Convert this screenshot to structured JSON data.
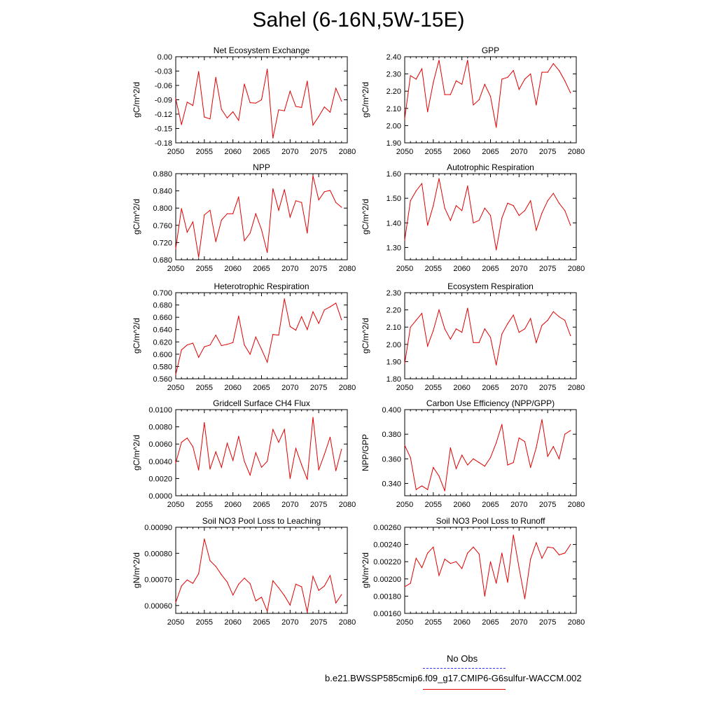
{
  "title": "Sahel (6-16N,5W-15E)",
  "legend": {
    "obs_label": "No Obs",
    "obs_color": "#3333ff",
    "model_label": "b.e21.BWSSP585cmip6.f09_g17.CMIP6-G6sulfur-WACCM.002",
    "model_color": "#e00000"
  },
  "chart_data": [
    {
      "type": "line",
      "title": "Net Ecosystem Exchange",
      "ylabel": "gC/m^2/d",
      "xlim": [
        2050,
        2080
      ],
      "ylim": [
        -0.18,
        0.0
      ],
      "xticks": [
        "2050",
        "2055",
        "2060",
        "2065",
        "2070",
        "2075",
        "2080"
      ],
      "yticks": [
        "-0.18",
        "-0.15",
        "-0.12",
        "-0.09",
        "-0.06",
        "-0.03",
        "0.00"
      ],
      "x": [
        2050,
        2051,
        2052,
        2053,
        2054,
        2055,
        2056,
        2057,
        2058,
        2059,
        2060,
        2061,
        2062,
        2063,
        2064,
        2065,
        2066,
        2067,
        2068,
        2069,
        2070,
        2071,
        2072,
        2073,
        2074,
        2075,
        2076,
        2077,
        2078,
        2079
      ],
      "values": [
        -0.088,
        -0.142,
        -0.095,
        -0.102,
        -0.031,
        -0.126,
        -0.13,
        -0.043,
        -0.11,
        -0.128,
        -0.115,
        -0.133,
        -0.057,
        -0.096,
        -0.097,
        -0.09,
        -0.026,
        -0.17,
        -0.111,
        -0.113,
        -0.072,
        -0.104,
        -0.106,
        -0.051,
        -0.143,
        -0.125,
        -0.105,
        -0.116,
        -0.066,
        -0.093
      ]
    },
    {
      "type": "line",
      "title": "GPP",
      "ylabel": "gC/m^2/d",
      "xlim": [
        2050,
        2080
      ],
      "ylim": [
        1.9,
        2.4
      ],
      "xticks": [
        "2050",
        "2055",
        "2060",
        "2065",
        "2070",
        "2075",
        "2080"
      ],
      "yticks": [
        "1.90",
        "2.00",
        "2.10",
        "2.20",
        "2.30",
        "2.40"
      ],
      "x": [
        2050,
        2051,
        2052,
        2053,
        2054,
        2055,
        2056,
        2057,
        2058,
        2059,
        2060,
        2061,
        2062,
        2063,
        2064,
        2065,
        2066,
        2067,
        2068,
        2069,
        2070,
        2071,
        2072,
        2073,
        2074,
        2075,
        2076,
        2077,
        2078,
        2079
      ],
      "values": [
        2.04,
        2.29,
        2.27,
        2.33,
        2.08,
        2.25,
        2.38,
        2.18,
        2.18,
        2.26,
        2.24,
        2.38,
        2.12,
        2.15,
        2.24,
        2.17,
        1.99,
        2.27,
        2.28,
        2.32,
        2.21,
        2.27,
        2.3,
        2.12,
        2.31,
        2.31,
        2.36,
        2.32,
        2.26,
        2.19
      ]
    },
    {
      "type": "line",
      "title": "NPP",
      "ylabel": "gC/m^2/d",
      "xlim": [
        2050,
        2080
      ],
      "ylim": [
        0.68,
        0.88
      ],
      "xticks": [
        "2050",
        "2055",
        "2060",
        "2065",
        "2070",
        "2075",
        "2080"
      ],
      "yticks": [
        "0.680",
        "0.720",
        "0.760",
        "0.800",
        "0.840",
        "0.880"
      ],
      "x": [
        2050,
        2051,
        2052,
        2053,
        2054,
        2055,
        2056,
        2057,
        2058,
        2059,
        2060,
        2061,
        2062,
        2063,
        2064,
        2065,
        2066,
        2067,
        2068,
        2069,
        2070,
        2071,
        2072,
        2073,
        2074,
        2075,
        2076,
        2077,
        2078,
        2079
      ],
      "values": [
        0.706,
        0.799,
        0.744,
        0.768,
        0.686,
        0.784,
        0.795,
        0.722,
        0.772,
        0.787,
        0.787,
        0.826,
        0.724,
        0.742,
        0.787,
        0.75,
        0.697,
        0.845,
        0.795,
        0.843,
        0.779,
        0.817,
        0.813,
        0.742,
        0.875,
        0.819,
        0.838,
        0.841,
        0.813,
        0.802
      ]
    },
    {
      "type": "line",
      "title": "Autotrophic Respiration",
      "ylabel": "gC/m^2/d",
      "xlim": [
        2050,
        2080
      ],
      "ylim": [
        1.25,
        1.6
      ],
      "xticks": [
        "2050",
        "2055",
        "2060",
        "2065",
        "2070",
        "2075",
        "2080"
      ],
      "yticks": [
        "1.30",
        "1.40",
        "1.50",
        "1.60"
      ],
      "x": [
        2050,
        2051,
        2052,
        2053,
        2054,
        2055,
        2056,
        2057,
        2058,
        2059,
        2060,
        2061,
        2062,
        2063,
        2064,
        2065,
        2066,
        2067,
        2068,
        2069,
        2070,
        2071,
        2072,
        2073,
        2074,
        2075,
        2076,
        2077,
        2078,
        2079
      ],
      "values": [
        1.33,
        1.49,
        1.53,
        1.56,
        1.39,
        1.47,
        1.58,
        1.46,
        1.41,
        1.47,
        1.45,
        1.55,
        1.4,
        1.41,
        1.46,
        1.43,
        1.29,
        1.42,
        1.48,
        1.47,
        1.43,
        1.45,
        1.49,
        1.37,
        1.44,
        1.49,
        1.52,
        1.48,
        1.45,
        1.39
      ]
    },
    {
      "type": "line",
      "title": "Heterotrophic Respiration",
      "ylabel": "gC/m^2/d",
      "xlim": [
        2050,
        2080
      ],
      "ylim": [
        0.56,
        0.7
      ],
      "xticks": [
        "2050",
        "2055",
        "2060",
        "2065",
        "2070",
        "2075",
        "2080"
      ],
      "yticks": [
        "0.560",
        "0.580",
        "0.600",
        "0.620",
        "0.640",
        "0.660",
        "0.680",
        "0.700"
      ],
      "x": [
        2050,
        2051,
        2052,
        2053,
        2054,
        2055,
        2056,
        2057,
        2058,
        2059,
        2060,
        2061,
        2062,
        2063,
        2064,
        2065,
        2066,
        2067,
        2068,
        2069,
        2070,
        2071,
        2072,
        2073,
        2074,
        2075,
        2076,
        2077,
        2078,
        2079
      ],
      "values": [
        0.567,
        0.607,
        0.615,
        0.618,
        0.595,
        0.612,
        0.615,
        0.631,
        0.614,
        0.616,
        0.619,
        0.662,
        0.615,
        0.6,
        0.628,
        0.608,
        0.587,
        0.632,
        0.631,
        0.69,
        0.645,
        0.639,
        0.661,
        0.64,
        0.669,
        0.65,
        0.672,
        0.677,
        0.683,
        0.656
      ]
    },
    {
      "type": "line",
      "title": "Ecosystem Respiration",
      "ylabel": "gC/m^2/d",
      "xlim": [
        2050,
        2080
      ],
      "ylim": [
        1.8,
        2.3
      ],
      "xticks": [
        "2050",
        "2055",
        "2060",
        "2065",
        "2070",
        "2075",
        "2080"
      ],
      "yticks": [
        "1.80",
        "1.90",
        "2.00",
        "2.10",
        "2.20",
        "2.30"
      ],
      "x": [
        2050,
        2051,
        2052,
        2053,
        2054,
        2055,
        2056,
        2057,
        2058,
        2059,
        2060,
        2061,
        2062,
        2063,
        2064,
        2065,
        2066,
        2067,
        2068,
        2069,
        2070,
        2071,
        2072,
        2073,
        2074,
        2075,
        2076,
        2077,
        2078,
        2079
      ],
      "values": [
        1.89,
        2.1,
        2.14,
        2.18,
        1.99,
        2.08,
        2.2,
        2.09,
        2.03,
        2.09,
        2.07,
        2.21,
        2.01,
        2.01,
        2.09,
        2.04,
        1.88,
        2.06,
        2.12,
        2.17,
        2.07,
        2.09,
        2.15,
        2.01,
        2.11,
        2.14,
        2.19,
        2.16,
        2.14,
        2.05
      ]
    },
    {
      "type": "line",
      "title": "Gridcell Surface CH4 Flux",
      "ylabel": "gC/m^2/d",
      "xlim": [
        2050,
        2080
      ],
      "ylim": [
        0.0,
        0.01
      ],
      "xticks": [
        "2050",
        "2055",
        "2060",
        "2065",
        "2070",
        "2075",
        "2080"
      ],
      "yticks": [
        "0.0000",
        "0.0020",
        "0.0040",
        "0.0060",
        "0.0080",
        "0.0100"
      ],
      "x": [
        2050,
        2051,
        2052,
        2053,
        2054,
        2055,
        2056,
        2057,
        2058,
        2059,
        2060,
        2061,
        2062,
        2063,
        2064,
        2065,
        2066,
        2067,
        2068,
        2069,
        2070,
        2071,
        2072,
        2073,
        2074,
        2075,
        2076,
        2077,
        2078,
        2079
      ],
      "values": [
        0.0038,
        0.0062,
        0.0067,
        0.0057,
        0.003,
        0.0085,
        0.0031,
        0.0051,
        0.0033,
        0.0061,
        0.0041,
        0.0069,
        0.004,
        0.0024,
        0.005,
        0.0033,
        0.004,
        0.0077,
        0.0062,
        0.0077,
        0.002,
        0.0055,
        0.0036,
        0.0019,
        0.0091,
        0.003,
        0.0048,
        0.0068,
        0.0029,
        0.0054
      ]
    },
    {
      "type": "line",
      "title": "Carbon Use Efficiency (NPP/GPP)",
      "ylabel": "NPP/GPP",
      "xlim": [
        2050,
        2080
      ],
      "ylim": [
        0.33,
        0.4
      ],
      "xticks": [
        "2050",
        "2055",
        "2060",
        "2065",
        "2070",
        "2075",
        "2080"
      ],
      "yticks": [
        "0.340",
        "0.360",
        "0.380",
        "0.400"
      ],
      "x": [
        2050,
        2051,
        2052,
        2053,
        2054,
        2055,
        2056,
        2057,
        2058,
        2059,
        2060,
        2061,
        2062,
        2063,
        2064,
        2065,
        2066,
        2067,
        2068,
        2069,
        2070,
        2071,
        2072,
        2073,
        2074,
        2075,
        2076,
        2077,
        2078,
        2079
      ],
      "values": [
        0.371,
        0.361,
        0.335,
        0.338,
        0.335,
        0.353,
        0.346,
        0.334,
        0.369,
        0.352,
        0.363,
        0.355,
        0.36,
        0.357,
        0.354,
        0.361,
        0.373,
        0.388,
        0.355,
        0.357,
        0.377,
        0.374,
        0.353,
        0.369,
        0.392,
        0.362,
        0.37,
        0.36,
        0.38,
        0.383
      ]
    },
    {
      "type": "line",
      "title": "Soil NO3 Pool Loss to Leaching",
      "ylabel": "gN/m^2/d",
      "xlim": [
        2050,
        2080
      ],
      "ylim": [
        0.00057,
        0.0009
      ],
      "xticks": [
        "2050",
        "2055",
        "2060",
        "2065",
        "2070",
        "2075",
        "2080"
      ],
      "yticks": [
        "0.00060",
        "0.00070",
        "0.00080",
        "0.00090"
      ],
      "x": [
        2050,
        2051,
        2052,
        2053,
        2054,
        2055,
        2056,
        2057,
        2058,
        2059,
        2060,
        2061,
        2062,
        2063,
        2064,
        2065,
        2066,
        2067,
        2068,
        2069,
        2070,
        2071,
        2072,
        2073,
        2074,
        2075,
        2076,
        2077,
        2078,
        2079
      ],
      "values": [
        0.000612,
        0.000675,
        0.000698,
        0.000685,
        0.000722,
        0.000855,
        0.000772,
        0.00075,
        0.000718,
        0.00069,
        0.00064,
        0.000682,
        0.000705,
        0.000684,
        0.000618,
        0.000632,
        0.000578,
        0.000695,
        0.000668,
        0.000638,
        0.000602,
        0.000682,
        0.000672,
        0.000575,
        0.000712,
        0.000658,
        0.000675,
        0.000715,
        0.00061,
        0.000642
      ]
    },
    {
      "type": "line",
      "title": "Soil NO3 Pool Loss to Runoff",
      "ylabel": "gN/m^2/d",
      "xlim": [
        2050,
        2080
      ],
      "ylim": [
        0.0016,
        0.0026
      ],
      "xticks": [
        "2050",
        "2055",
        "2060",
        "2065",
        "2070",
        "2075",
        "2080"
      ],
      "yticks": [
        "0.00160",
        "0.00180",
        "0.00200",
        "0.00220",
        "0.00240",
        "0.00260"
      ],
      "x": [
        2050,
        2051,
        2052,
        2053,
        2054,
        2055,
        2056,
        2057,
        2058,
        2059,
        2060,
        2061,
        2062,
        2063,
        2064,
        2065,
        2066,
        2067,
        2068,
        2069,
        2070,
        2071,
        2072,
        2073,
        2074,
        2075,
        2076,
        2077,
        2078,
        2079
      ],
      "values": [
        0.00191,
        0.00195,
        0.00224,
        0.00213,
        0.0023,
        0.00237,
        0.00204,
        0.00223,
        0.00218,
        0.0022,
        0.00212,
        0.0023,
        0.00237,
        0.00229,
        0.0018,
        0.0022,
        0.00195,
        0.0023,
        0.00196,
        0.00251,
        0.00213,
        0.00177,
        0.00223,
        0.00242,
        0.00224,
        0.00237,
        0.00236,
        0.00228,
        0.0023,
        0.0024
      ]
    }
  ]
}
